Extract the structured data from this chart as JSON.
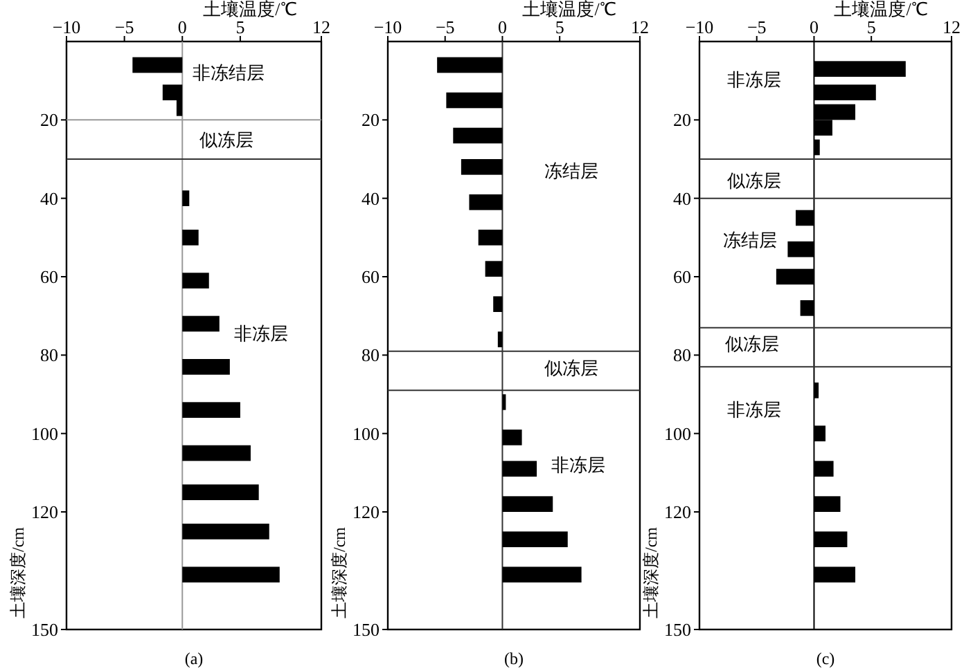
{
  "chart_data": [
    {
      "type": "bar",
      "orientation": "horizontal",
      "xlabel": "土壤温度/℃",
      "ylabel": "土壤深度/cm",
      "xlim": [
        -10,
        12
      ],
      "xticks": [
        -10,
        -5,
        0,
        5,
        12
      ],
      "ylim": [
        150,
        0
      ],
      "yticks": [
        20,
        40,
        60,
        80,
        100,
        120,
        150
      ],
      "x": [
        6,
        13,
        17,
        40,
        50,
        61,
        72,
        83,
        94,
        105,
        115,
        125,
        136
      ],
      "values": [
        -4.3,
        -1.7,
        -0.5,
        0.6,
        1.4,
        2.3,
        3.2,
        4.1,
        5.0,
        5.9,
        6.6,
        7.5,
        8.4
      ],
      "color": "#000000",
      "ref_lines": [
        {
          "axis": "x",
          "value": 0,
          "color": "#999999"
        },
        {
          "axis": "y",
          "value": 20,
          "color": "#999999"
        },
        {
          "axis": "y",
          "value": 30,
          "color": "#333333"
        }
      ],
      "annotations": [
        "非冻结层",
        "似冻层",
        "非冻层",
        "(a)"
      ]
    },
    {
      "type": "bar",
      "orientation": "horizontal",
      "xlabel": "土壤温度/℃",
      "ylabel": "土壤深度/cm",
      "xlim": [
        -10,
        12
      ],
      "xticks": [
        -10,
        -5,
        0,
        5,
        12
      ],
      "ylim": [
        150,
        0
      ],
      "yticks": [
        20,
        40,
        60,
        80,
        100,
        120,
        150
      ],
      "x": [
        6,
        15,
        24,
        32,
        41,
        50,
        58,
        67,
        76,
        92,
        101,
        109,
        118,
        127,
        136
      ],
      "values": [
        -5.7,
        -4.9,
        -4.3,
        -3.6,
        -2.9,
        -2.1,
        -1.5,
        -0.8,
        -0.4,
        0.3,
        1.7,
        3.0,
        4.4,
        5.7,
        6.9
      ],
      "color": "#000000",
      "ref_lines": [
        {
          "axis": "x",
          "value": 0,
          "color": "#333333"
        },
        {
          "axis": "y",
          "value": 79,
          "color": "#333333"
        },
        {
          "axis": "y",
          "value": 89,
          "color": "#333333"
        }
      ],
      "annotations": [
        "冻结层",
        "似冻层",
        "非冻层",
        "(b)"
      ]
    },
    {
      "type": "bar",
      "orientation": "horizontal",
      "xlabel": "土壤温度/℃",
      "ylabel": "土壤深度/cm",
      "xlim": [
        -10,
        12
      ],
      "xticks": [
        -10,
        -5,
        0,
        5,
        12
      ],
      "ylim": [
        150,
        0
      ],
      "yticks": [
        20,
        40,
        60,
        80,
        100,
        120,
        150
      ],
      "x": [
        7,
        13,
        18,
        22,
        27,
        45,
        53,
        60,
        68,
        89,
        100,
        109,
        118,
        127,
        136
      ],
      "values": [
        8.0,
        5.4,
        3.6,
        1.6,
        0.5,
        -1.6,
        -2.3,
        -3.3,
        -1.2,
        0.4,
        1.0,
        1.7,
        2.3,
        2.9,
        3.6
      ],
      "color": "#000000",
      "ref_lines": [
        {
          "axis": "x",
          "value": 0,
          "color": "#000000"
        },
        {
          "axis": "y",
          "value": 30,
          "color": "#333333"
        },
        {
          "axis": "y",
          "value": 40,
          "color": "#333333"
        },
        {
          "axis": "y",
          "value": 73,
          "color": "#333333"
        },
        {
          "axis": "y",
          "value": 83,
          "color": "#333333"
        }
      ],
      "annotations": [
        "非冻层",
        "似冻层",
        "冻结层",
        "似冻层",
        "非冻层",
        "(c)"
      ]
    }
  ]
}
